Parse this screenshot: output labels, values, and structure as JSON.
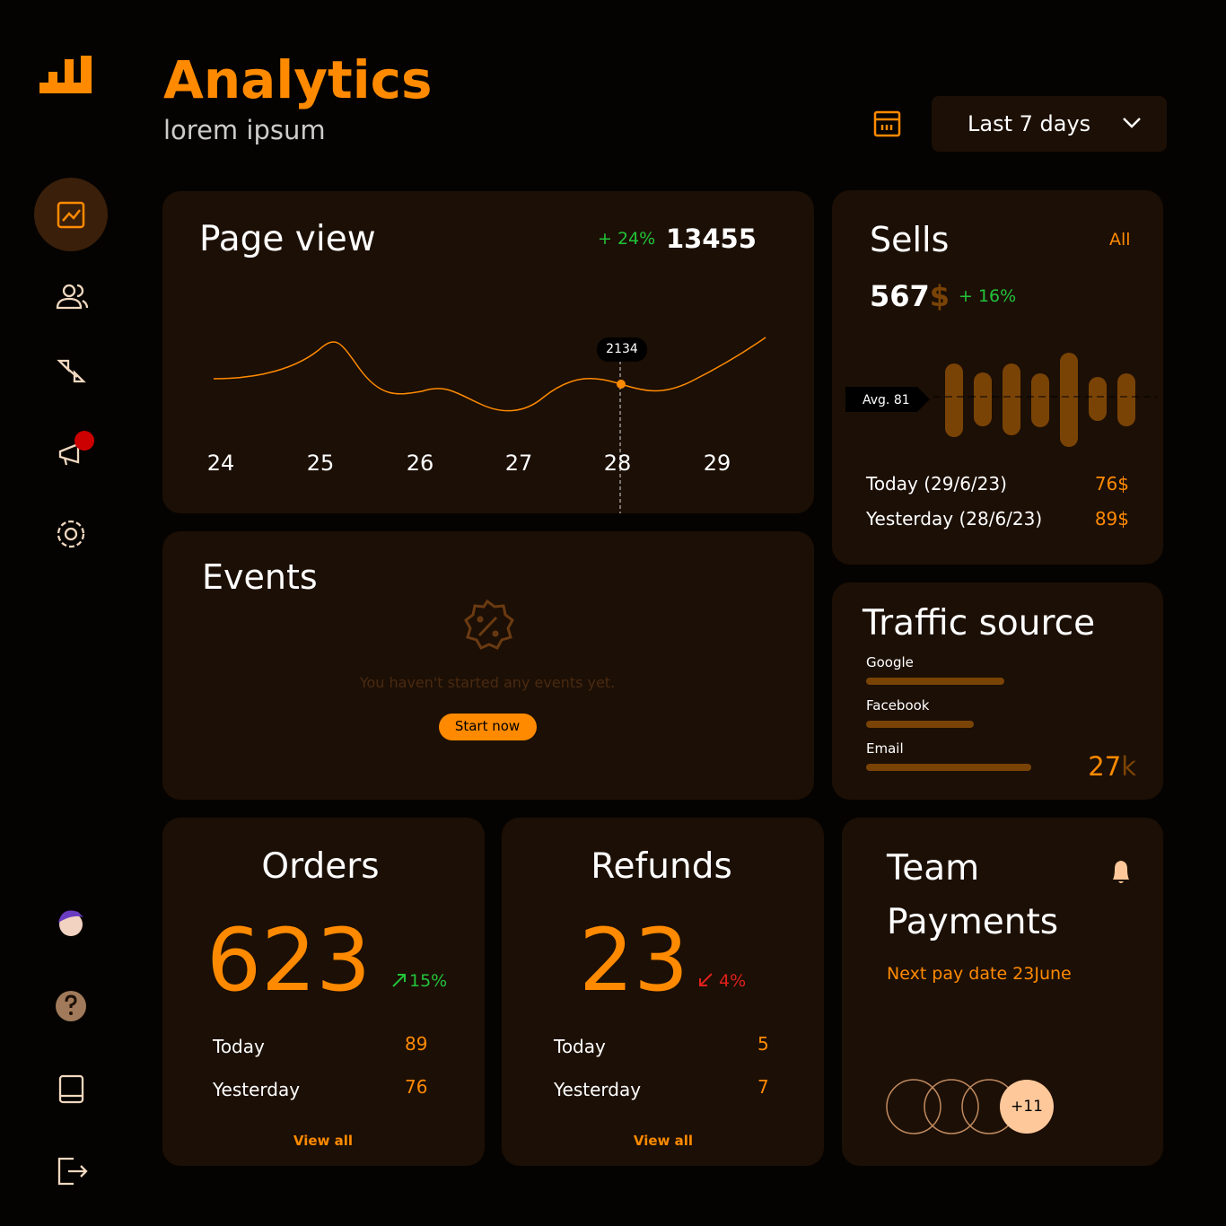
{
  "header": {
    "title": "Analytics",
    "subtitle": "lorem ipsum",
    "range": "Last 7 days"
  },
  "page_view": {
    "title": "Page view",
    "change": "+ 24%",
    "total": "13455",
    "days": [
      "24",
      "25",
      "26",
      "27",
      "28",
      "29"
    ],
    "tooltip": "2134"
  },
  "events": {
    "title": "Events",
    "empty": "You haven't started any events yet.",
    "button": "Start now"
  },
  "sells": {
    "title": "Sells",
    "filter": "All",
    "amount": "567",
    "currency": "$",
    "change": "+ 16%",
    "avg": "Avg. 81",
    "rows": [
      [
        "Today (29/6/23)",
        "76$"
      ],
      [
        "Yesterday (28/6/23)",
        "89$"
      ]
    ]
  },
  "traffic": {
    "title": "Traffic source",
    "sources": [
      "Google",
      "Facebook",
      "Email"
    ],
    "total": "27",
    "unit": "k"
  },
  "orders": {
    "title": "Orders",
    "count": "623",
    "change": "15%",
    "rows": [
      [
        "Today",
        "89"
      ],
      [
        "Yesterday",
        "76"
      ]
    ],
    "link": "View all"
  },
  "refunds": {
    "title": "Refunds",
    "count": "23",
    "change": "4%",
    "rows": [
      [
        "Today",
        "5"
      ],
      [
        "Yesterday",
        "7"
      ]
    ],
    "link": "View all"
  },
  "team": {
    "title_line1": "Team",
    "title_line2": "Payments",
    "next_pay": "Next pay date 23June",
    "extra": "+11"
  }
}
